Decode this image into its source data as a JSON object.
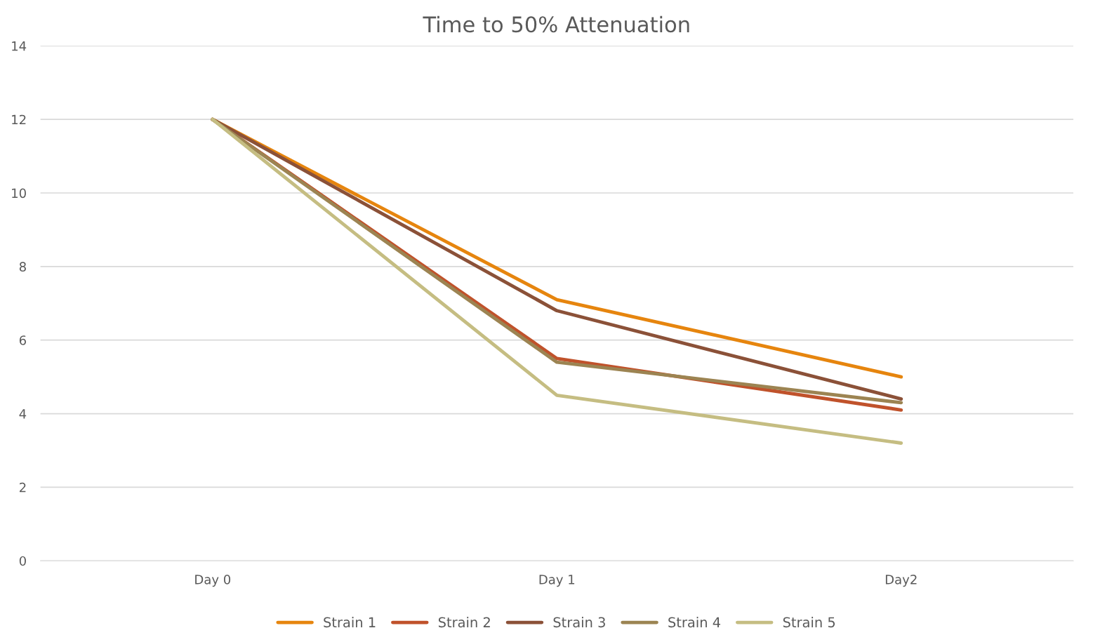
{
  "chart_data": {
    "type": "line",
    "title": "Time to 50% Attenuation",
    "categories": [
      "Day 0",
      "Day 1",
      "Day2"
    ],
    "series": [
      {
        "name": "Strain 1",
        "color": "#e6850e",
        "values": [
          12,
          7.1,
          5.0
        ]
      },
      {
        "name": "Strain 2",
        "color": "#c0522b",
        "values": [
          12,
          5.5,
          4.1
        ]
      },
      {
        "name": "Strain 3",
        "color": "#8b5138",
        "values": [
          12,
          6.8,
          4.4
        ]
      },
      {
        "name": "Strain 4",
        "color": "#9c8452",
        "values": [
          12,
          5.4,
          4.3
        ]
      },
      {
        "name": "Strain 5",
        "color": "#c5bd82",
        "values": [
          12,
          4.5,
          3.2
        ]
      }
    ],
    "ylim": [
      0,
      14
    ],
    "yticks": [
      0,
      2,
      4,
      6,
      8,
      10,
      12,
      14
    ],
    "grid": "y",
    "legend": "bottom",
    "marker": "none",
    "line_style": "solid"
  }
}
